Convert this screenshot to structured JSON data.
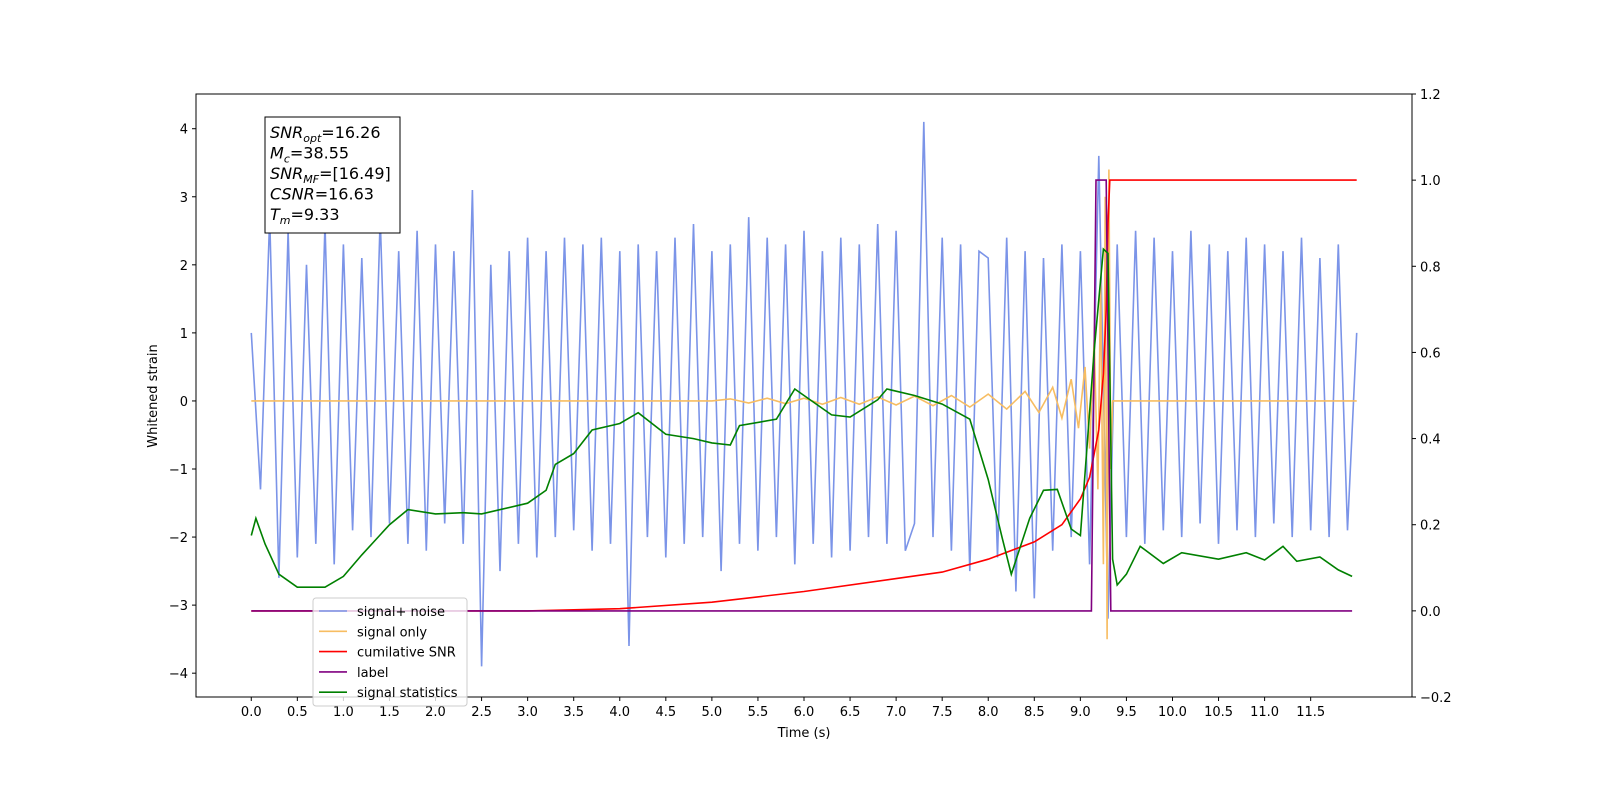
{
  "chart_data": {
    "type": "line",
    "xlabel": "Time (s)",
    "ylabel": "Whitened strain",
    "xlim": [
      -0.6,
      12.6
    ],
    "ylim": [
      -4.35,
      4.51
    ],
    "y2lim": [
      -0.2,
      1.2
    ],
    "xticks": [
      {
        "value": 0,
        "label": "0.0"
      },
      0.5,
      {
        "value": 1,
        "label": "1.0"
      },
      1.5,
      {
        "value": 2,
        "label": "2.0"
      },
      2.5,
      {
        "value": 3,
        "label": "3.0"
      },
      3.5,
      {
        "value": 4,
        "label": "4.0"
      },
      4.5,
      {
        "value": 5,
        "label": "5.0"
      },
      5.5,
      {
        "value": 6,
        "label": "6.0"
      },
      6.5,
      {
        "value": 7,
        "label": "7.0"
      },
      7.5,
      {
        "value": 8,
        "label": "8.0"
      },
      8.5,
      {
        "value": 9,
        "label": "9.0"
      },
      9.5,
      {
        "value": 10,
        "label": "10.0"
      },
      10.5,
      {
        "value": 11,
        "label": "11.0"
      },
      11.5
    ],
    "yticks": [
      {
        "value": -4,
        "label": "−4"
      },
      {
        "value": -3,
        "label": "−3"
      },
      {
        "value": -2,
        "label": "−2"
      },
      {
        "value": -1,
        "label": "−1"
      },
      0,
      1,
      2,
      3,
      4
    ],
    "y2ticks": [
      {
        "value": -0.2,
        "label": "−0.2"
      },
      {
        "value": 0,
        "label": "0.0"
      },
      0.2,
      0.4,
      0.6,
      0.8,
      {
        "value": 1,
        "label": "1.0"
      },
      1.2
    ],
    "legend": "lower left",
    "annotation": [
      [
        "SNR",
        "opt",
        "=16.26"
      ],
      [
        "M",
        "c",
        "=38.55"
      ],
      [
        "SNR",
        "MF",
        "=[16.49]"
      ],
      [
        "CSNR",
        "",
        "=16.63"
      ],
      [
        "T",
        "m",
        "=9.33"
      ]
    ],
    "series": [
      {
        "name": "signal+ noise",
        "color": "#7b94e8",
        "x": [
          0,
          0.1,
          0.2,
          0.3,
          0.4,
          0.5,
          0.6,
          0.7,
          0.8,
          0.9,
          1,
          1.1,
          1.2,
          1.3,
          1.4,
          1.5,
          1.6,
          1.7,
          1.8,
          1.9,
          2,
          2.1,
          2.2,
          2.3,
          2.4,
          2.5,
          2.6,
          2.7,
          2.8,
          2.9,
          3,
          3.1,
          3.2,
          3.3,
          3.4,
          3.5,
          3.6,
          3.7,
          3.8,
          3.9,
          4,
          4.1,
          4.2,
          4.3,
          4.4,
          4.5,
          4.6,
          4.7,
          4.8,
          4.9,
          5,
          5.1,
          5.2,
          5.3,
          5.4,
          5.5,
          5.6,
          5.7,
          5.8,
          5.9,
          6,
          6.1,
          6.2,
          6.3,
          6.4,
          6.5,
          6.6,
          6.7,
          6.8,
          6.9,
          7,
          7.1,
          7.2,
          7.3,
          7.4,
          7.5,
          7.6,
          7.7,
          7.8,
          7.9,
          8,
          8.1,
          8.2,
          8.3,
          8.4,
          8.5,
          8.6,
          8.7,
          8.8,
          8.9,
          9,
          9.1,
          9.2,
          9.3,
          9.4,
          9.5,
          9.6,
          9.7,
          9.8,
          9.9,
          10,
          10.1,
          10.2,
          10.3,
          10.4,
          10.5,
          10.6,
          10.7,
          10.8,
          10.9,
          11,
          11.1,
          11.2,
          11.3,
          11.4,
          11.5,
          11.6,
          11.7,
          11.8,
          11.9,
          12
        ],
        "values": [
          1.0,
          -1.3,
          2.7,
          -2.6,
          2.5,
          -2.3,
          2.0,
          -2.1,
          2.6,
          -2.4,
          2.3,
          -1.9,
          2.1,
          -2.0,
          2.7,
          -1.8,
          2.2,
          -2.1,
          2.5,
          -2.2,
          2.3,
          -1.8,
          2.2,
          -2.1,
          3.1,
          -3.9,
          2.0,
          -2.5,
          2.2,
          -2.1,
          2.4,
          -2.3,
          2.2,
          -2.0,
          2.4,
          -1.9,
          2.3,
          -2.2,
          2.4,
          -2.1,
          2.2,
          -3.6,
          2.3,
          -2.0,
          2.2,
          -2.3,
          2.4,
          -2.1,
          2.6,
          -2.0,
          2.2,
          -2.5,
          2.3,
          -2.1,
          2.7,
          -2.2,
          2.4,
          -2.0,
          2.3,
          -2.4,
          2.5,
          -2.1,
          2.2,
          -2.3,
          2.4,
          -2.2,
          2.3,
          -2.0,
          2.6,
          -2.1,
          2.5,
          -2.2,
          -1.8,
          4.1,
          -2.0,
          2.4,
          -2.2,
          2.3,
          -2.5,
          2.2,
          2.1,
          -2.3,
          2.4,
          -2.8,
          2.2,
          -2.9,
          2.1,
          -2.2,
          2.3,
          -2.0,
          2.2,
          -2.4,
          3.6,
          -3.2,
          2.3,
          -2.0,
          2.5,
          -2.1,
          2.4,
          -1.9,
          2.2,
          -2.0,
          2.5,
          -1.8,
          2.3,
          -2.1,
          2.2,
          -1.9,
          2.4,
          -2.0,
          2.3,
          -1.8,
          2.2,
          -2.0,
          2.4,
          -1.9,
          2.1,
          -2.0,
          2.3,
          -1.9,
          1.0
        ]
      },
      {
        "name": "signal only",
        "color": "#f7bd62",
        "x": [
          0,
          5,
          5.2,
          5.4,
          5.6,
          5.8,
          6,
          6.2,
          6.4,
          6.6,
          6.8,
          7,
          7.2,
          7.4,
          7.6,
          7.8,
          8,
          8.2,
          8.4,
          8.55,
          8.7,
          8.8,
          8.9,
          8.98,
          9.05,
          9.1,
          9.15,
          9.19,
          9.22,
          9.25,
          9.27,
          9.29,
          9.31,
          9.33,
          9.35,
          12
        ],
        "values": [
          0,
          0,
          0.03,
          -0.03,
          0.04,
          -0.04,
          0.04,
          -0.05,
          0.05,
          -0.05,
          0.06,
          -0.06,
          0.07,
          -0.07,
          0.08,
          -0.09,
          0.1,
          -0.12,
          0.14,
          -0.17,
          0.2,
          -0.25,
          0.32,
          -0.4,
          0.5,
          -0.7,
          0.9,
          -1.3,
          1.8,
          -2.4,
          3.0,
          -3.5,
          3.4,
          -1.0,
          0,
          0
        ]
      },
      {
        "name": "cumilative SNR",
        "color": "#ff0000",
        "axis": "y2",
        "x": [
          0,
          3,
          4,
          5,
          6,
          7,
          7.5,
          8,
          8.5,
          8.8,
          9,
          9.1,
          9.2,
          9.25,
          9.28,
          9.3,
          9.32,
          12
        ],
        "values": [
          0,
          0,
          0.005,
          0.02,
          0.045,
          0.075,
          0.09,
          0.12,
          0.16,
          0.2,
          0.26,
          0.31,
          0.42,
          0.55,
          0.7,
          0.9,
          1.0,
          1.0
        ]
      },
      {
        "name": "label",
        "color": "#800080",
        "axis": "y2",
        "x": [
          0,
          9.12,
          9.17,
          9.28,
          9.33,
          11.95
        ],
        "values": [
          0,
          0,
          1,
          1,
          0,
          0
        ]
      },
      {
        "name": "signal statistics",
        "color": "#008000",
        "axis": "y2",
        "x": [
          0,
          0.05,
          0.15,
          0.3,
          0.5,
          0.8,
          1,
          1.2,
          1.5,
          1.7,
          2,
          2.3,
          2.5,
          3,
          3.2,
          3.3,
          3.5,
          3.7,
          4,
          4.2,
          4.5,
          4.8,
          5,
          5.2,
          5.3,
          5.7,
          5.9,
          6,
          6.3,
          6.5,
          6.8,
          6.9,
          7.2,
          7.5,
          7.8,
          8,
          8.15,
          8.25,
          8.45,
          8.6,
          8.75,
          8.9,
          9,
          9.15,
          9.25,
          9.3,
          9.35,
          9.4,
          9.5,
          9.65,
          9.9,
          10.1,
          10.5,
          10.8,
          11,
          11.2,
          11.35,
          11.6,
          11.8,
          11.95
        ],
        "values": [
          0.175,
          0.215,
          0.155,
          0.085,
          0.055,
          0.055,
          0.08,
          0.13,
          0.2,
          0.235,
          0.225,
          0.228,
          0.225,
          0.25,
          0.28,
          0.34,
          0.365,
          0.42,
          0.435,
          0.46,
          0.41,
          0.4,
          0.39,
          0.385,
          0.43,
          0.445,
          0.515,
          0.5,
          0.455,
          0.45,
          0.49,
          0.515,
          0.5,
          0.48,
          0.445,
          0.305,
          0.17,
          0.085,
          0.215,
          0.28,
          0.282,
          0.19,
          0.175,
          0.605,
          0.84,
          0.83,
          0.12,
          0.06,
          0.085,
          0.15,
          0.11,
          0.135,
          0.12,
          0.135,
          0.118,
          0.15,
          0.115,
          0.125,
          0.095,
          0.08
        ]
      }
    ]
  }
}
